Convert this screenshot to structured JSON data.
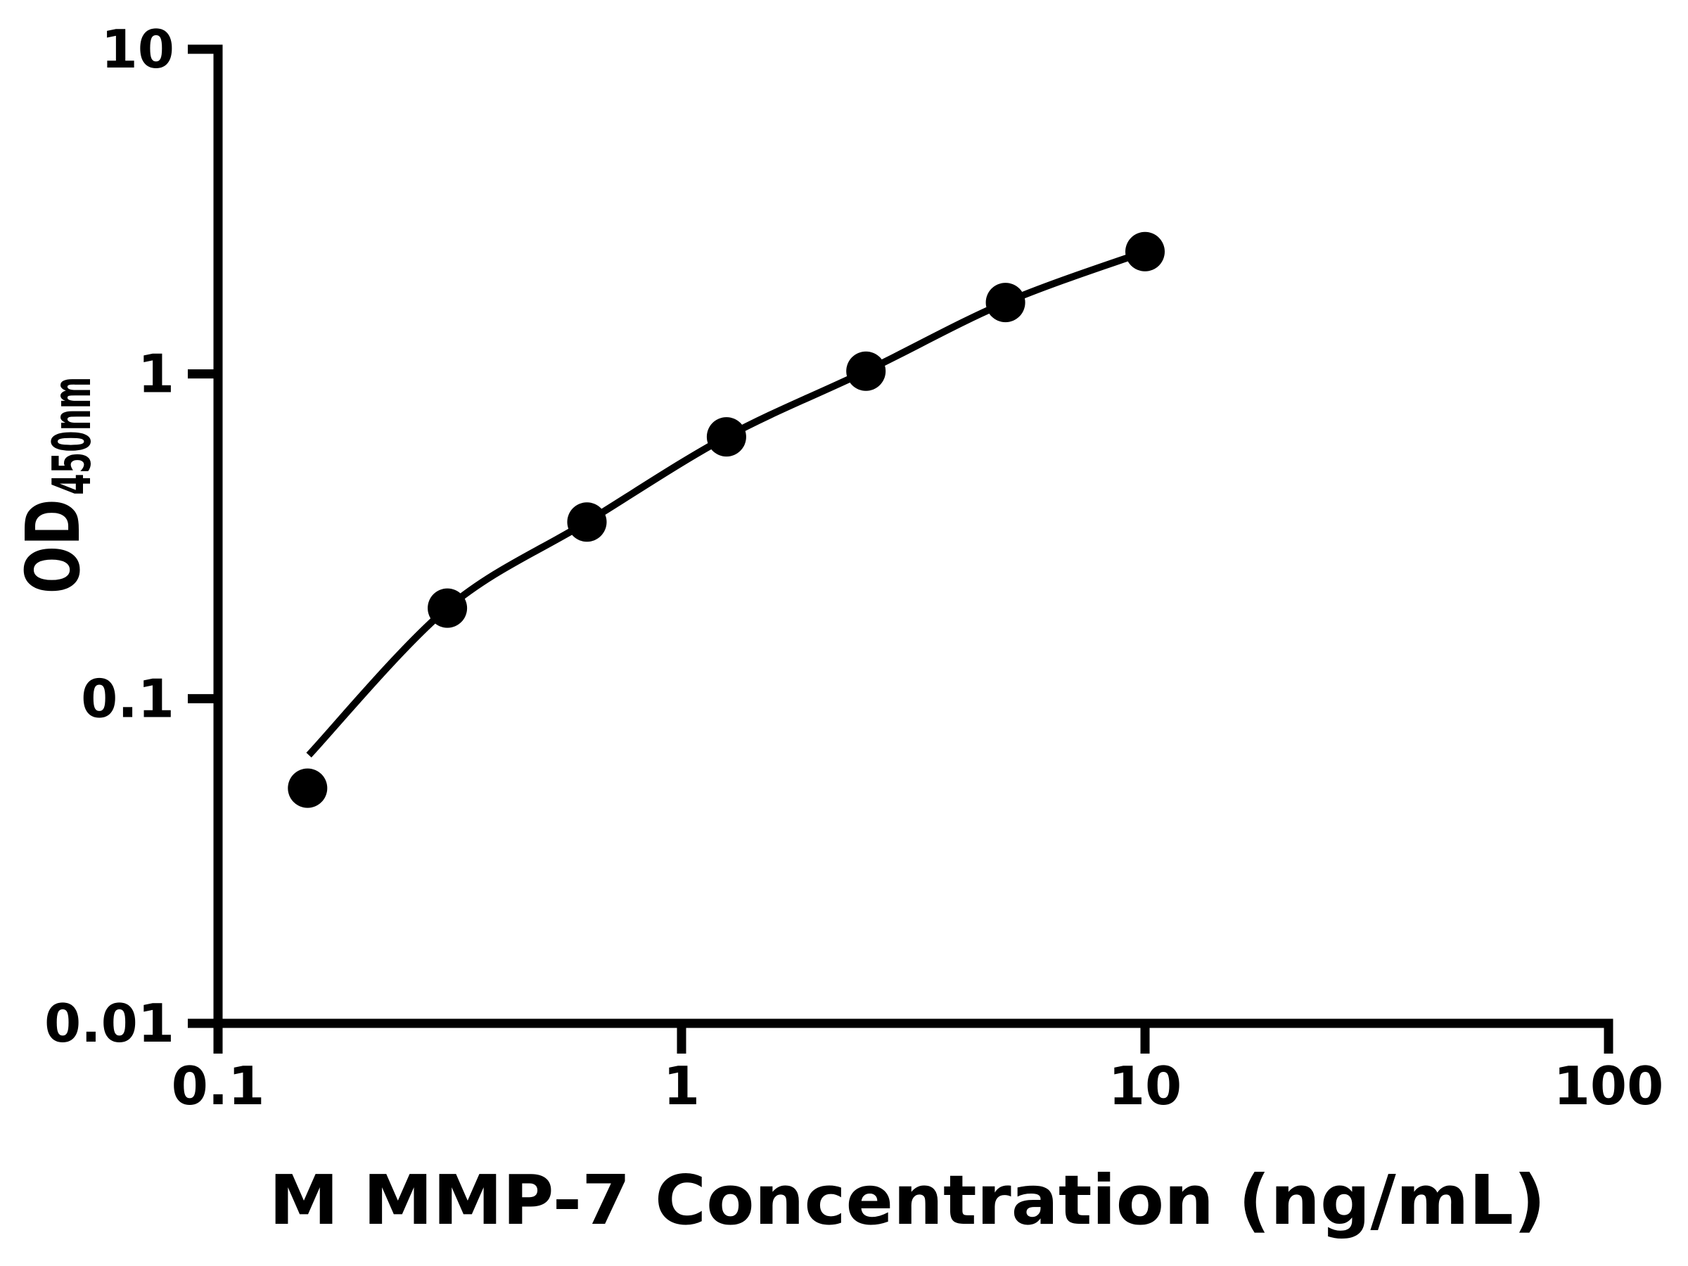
{
  "chart_data": {
    "type": "scatter",
    "title": "",
    "xlabel": "M MMP-7 Concentration (ng/mL)",
    "ylabel_main": "OD",
    "ylabel_sub": "450nm",
    "x_scale": "log",
    "y_scale": "log",
    "xlim": [
      0.1,
      100
    ],
    "ylim": [
      0.01,
      10
    ],
    "x_ticks": [
      {
        "label": "0.1",
        "value": 0.1
      },
      {
        "label": "1",
        "value": 1
      },
      {
        "label": "10",
        "value": 10
      },
      {
        "label": "100",
        "value": 100
      }
    ],
    "y_ticks": [
      {
        "label": "10",
        "value": 10
      },
      {
        "label": "1",
        "value": 1
      },
      {
        "label": "0.1",
        "value": 0.1
      },
      {
        "label": "0.01",
        "value": 0.01
      }
    ],
    "grid": false,
    "legend": false,
    "colors": {
      "marker": "#000000",
      "line": "#000000",
      "axis": "#000000",
      "text": "#000000",
      "background": "#ffffff"
    },
    "series": [
      {
        "x": [
          0.156,
          0.3125,
          0.625,
          1.25,
          2.5,
          5,
          10
        ],
        "od450": [
          0.053,
          0.19,
          0.35,
          0.64,
          1.02,
          1.66,
          2.38
        ]
      }
    ],
    "fit_curve_start": {
      "x": 0.157,
      "od450": 0.067
    }
  }
}
